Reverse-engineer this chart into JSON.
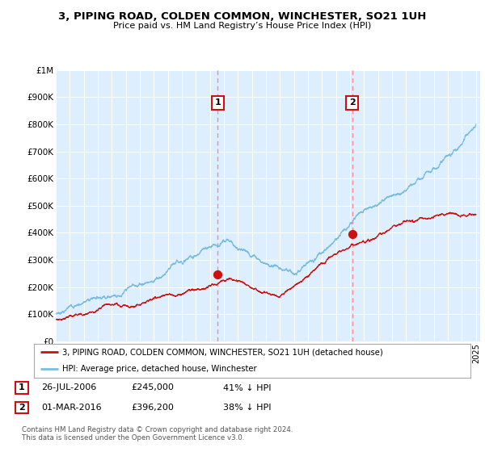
{
  "title": "3, PIPING ROAD, COLDEN COMMON, WINCHESTER, SO21 1UH",
  "subtitle": "Price paid vs. HM Land Registry’s House Price Index (HPI)",
  "ylim": [
    0,
    1000000
  ],
  "yticks": [
    0,
    100000,
    200000,
    300000,
    400000,
    500000,
    600000,
    700000,
    800000,
    900000,
    1000000
  ],
  "ytick_labels": [
    "£0",
    "£100K",
    "£200K",
    "£300K",
    "£400K",
    "£500K",
    "£600K",
    "£700K",
    "£800K",
    "£900K",
    "£1M"
  ],
  "hpi_color": "#7bbde0",
  "price_color": "#cc1111",
  "vline_color": "#ff8888",
  "sale1_year": 2006.57,
  "sale1_price": 245000,
  "sale2_year": 2016.17,
  "sale2_price": 396200,
  "legend_label_price": "3, PIPING ROAD, COLDEN COMMON, WINCHESTER, SO21 1UH (detached house)",
  "legend_label_hpi": "HPI: Average price, detached house, Winchester",
  "annotation1_date": "26-JUL-2006",
  "annotation1_price": "£245,000",
  "annotation1_hpi": "41% ↓ HPI",
  "annotation2_date": "01-MAR-2016",
  "annotation2_price": "£396,200",
  "annotation2_hpi": "38% ↓ HPI",
  "footer": "Contains HM Land Registry data © Crown copyright and database right 2024.\nThis data is licensed under the Open Government Licence v3.0.",
  "background_color": "#ffffff",
  "plot_bg_color": "#ddeeff"
}
